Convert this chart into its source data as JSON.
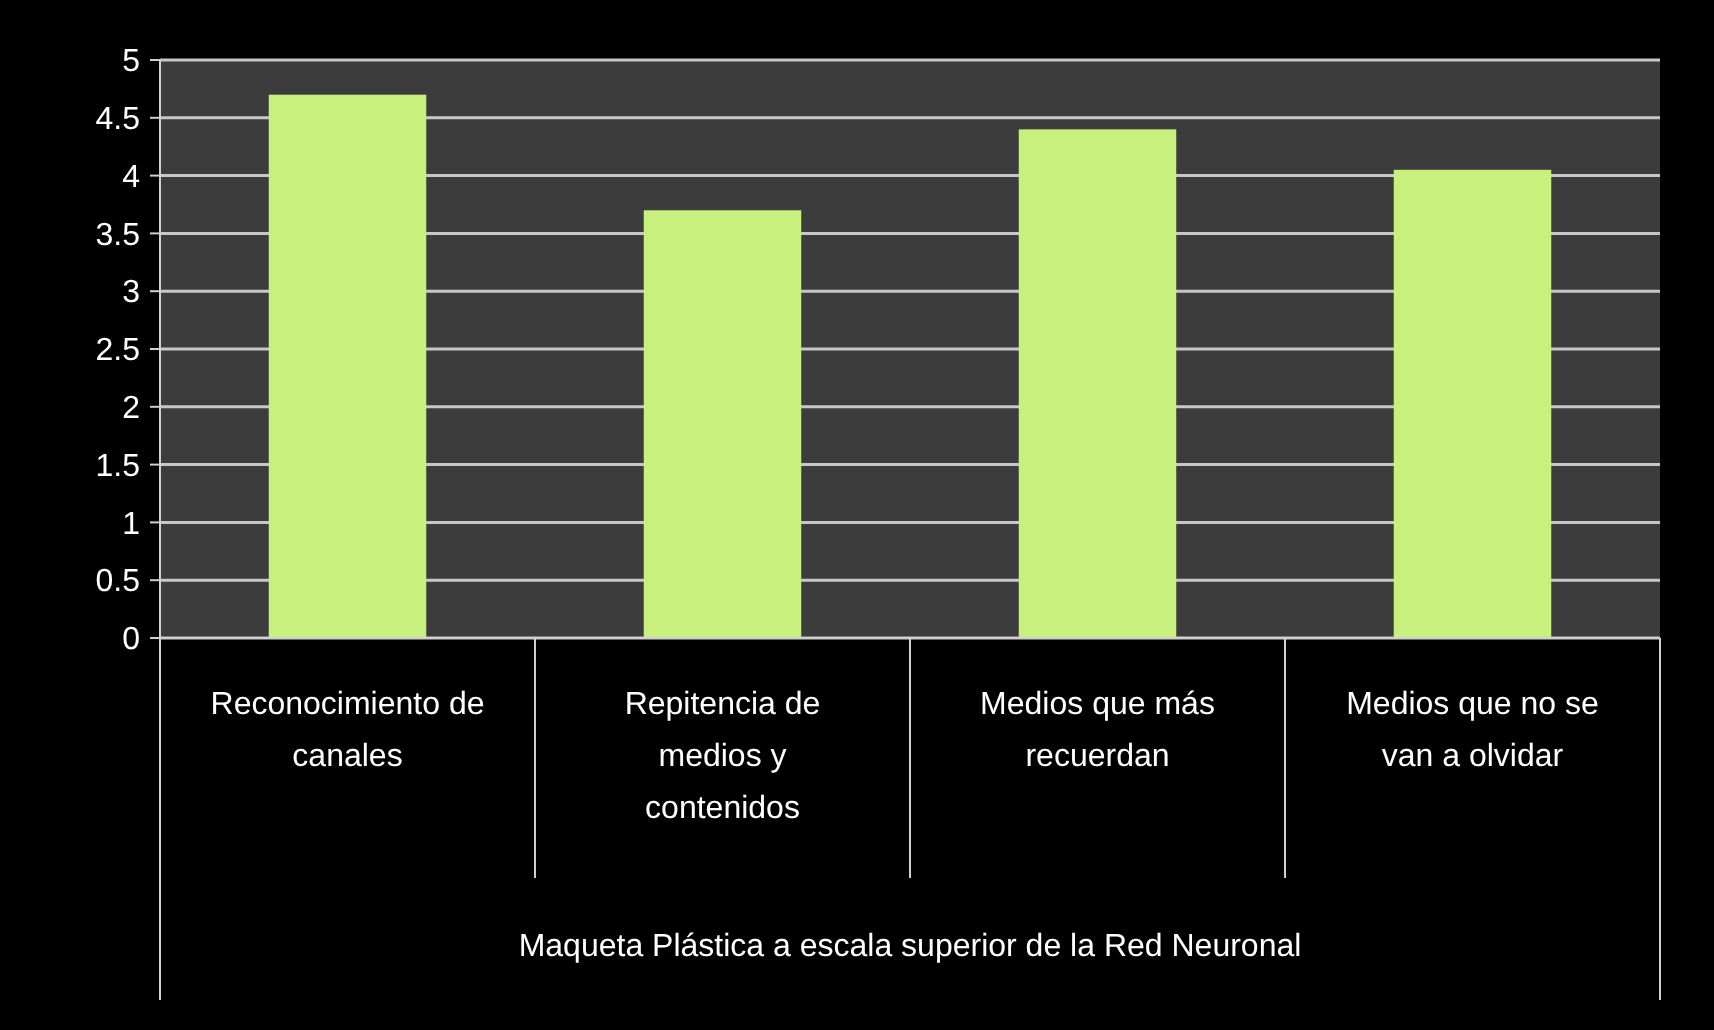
{
  "chart_data": {
    "type": "bar",
    "xlabel": "Maqueta Plástica a escala superior de la Red Neuronal",
    "categories": [
      "Reconocimiento de canales",
      "Repitencia de medios y contenidos",
      "Medios que más recuerdan",
      "Medios que no se van a olvidar"
    ],
    "values": [
      4.7,
      3.7,
      4.4,
      4.05
    ],
    "color": "#c8f07c",
    "ylim": [
      0,
      5
    ],
    "yticks": [
      0,
      {
        "value": 0.5,
        "label": "0.5"
      },
      1,
      {
        "value": 1.5,
        "label": "1.5"
      },
      2,
      {
        "value": 2.5,
        "label": "2.5"
      },
      3,
      {
        "value": 3.5,
        "label": "3.5"
      },
      4,
      {
        "value": 4.5,
        "label": "4.5"
      },
      5
    ],
    "grid": "y"
  }
}
